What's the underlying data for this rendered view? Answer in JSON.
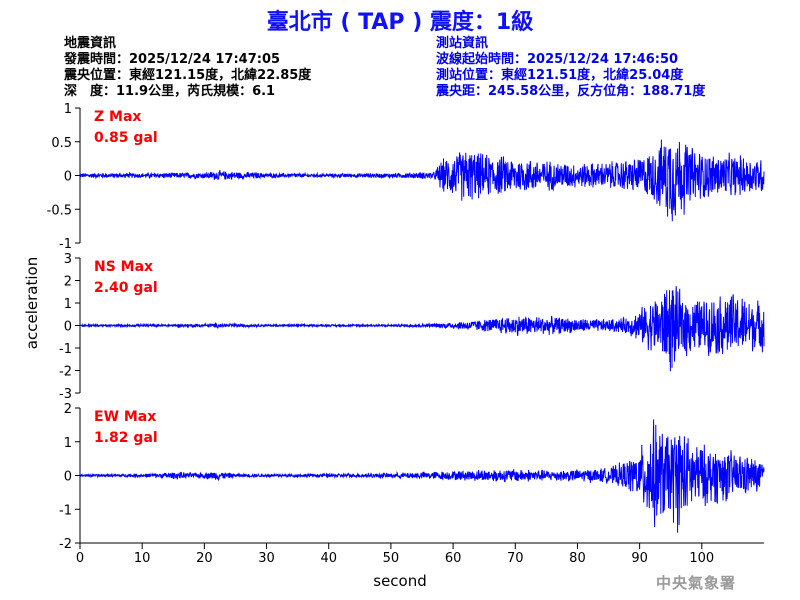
{
  "title": "臺北市 ( TAP ) 震度：1級",
  "quake_info": {
    "heading": "地震資訊",
    "origin_time": "發震時間：2025/12/24 17:47:05",
    "epicenter": "震央位置：東經121.15度，北緯22.85度",
    "depth_magnitude": "深　度：11.9公里，芮氏規模：6.1"
  },
  "station_info": {
    "heading": "測站資訊",
    "wave_start_time": "波線起始時間：2025/12/24 17:46:50",
    "location": "測站位置：東經121.51度，北緯25.04度",
    "distance_azimuth": "震央距：245.58公里，反方位角：188.71度"
  },
  "footer": "中央氣象署",
  "colors": {
    "trace": "#0000ff",
    "max_label": "#ff0000",
    "title": "#1010ff",
    "station_info": "#0000ee"
  },
  "chart_data": {
    "type": "line",
    "xlabel": "second",
    "ylabel": "acceleration",
    "xlim": [
      0,
      110
    ],
    "x_ticks": [
      "0",
      "10",
      "20",
      "30",
      "40",
      "50",
      "60",
      "70",
      "80",
      "90",
      "100"
    ],
    "grid": false,
    "panels": [
      {
        "name": "Z",
        "max_label": "Z Max",
        "max_value": "0.85 gal",
        "ylim": [
          -1,
          1
        ],
        "y_ticks": [
          "1",
          "0.5",
          "0",
          "-0.5",
          "-1"
        ],
        "series": [
          {
            "x": [
              0,
              10,
              20,
              22,
              30,
              40,
              50,
              57,
              58,
              60,
              62,
              65,
              70,
              75,
              80,
              85,
              90,
              92,
              93,
              94,
              95,
              96,
              97,
              98,
              100,
              102,
              105,
              108,
              110
            ],
            "amp": [
              0.04,
              0.04,
              0.05,
              0.08,
              0.04,
              0.03,
              0.04,
              0.06,
              0.25,
              0.35,
              0.45,
              0.35,
              0.3,
              0.25,
              0.2,
              0.22,
              0.3,
              0.4,
              0.55,
              0.6,
              0.85,
              0.7,
              0.65,
              0.5,
              0.4,
              0.35,
              0.35,
              0.3,
              0.3
            ]
          }
        ]
      },
      {
        "name": "NS",
        "max_label": "NS Max",
        "max_value": "2.40 gal",
        "ylim": [
          -3,
          3
        ],
        "y_ticks": [
          "3",
          "2",
          "1",
          "0",
          "-1",
          "-2",
          "-3"
        ],
        "series": [
          {
            "x": [
              0,
              10,
              20,
              22,
              30,
              40,
              50,
              57,
              60,
              65,
              70,
              75,
              80,
              85,
              88,
              90,
              92,
              94,
              95,
              96,
              98,
              100,
              103,
              105,
              108,
              110
            ],
            "amp": [
              0.05,
              0.06,
              0.08,
              0.12,
              0.05,
              0.05,
              0.06,
              0.1,
              0.18,
              0.3,
              0.5,
              0.45,
              0.35,
              0.3,
              0.4,
              0.8,
              1.3,
              1.8,
              2.4,
              1.8,
              1.4,
              1.3,
              1.5,
              1.6,
              1.3,
              1.2
            ]
          }
        ]
      },
      {
        "name": "EW",
        "max_label": "EW Max",
        "max_value": "1.82 gal",
        "ylim": [
          -2,
          2
        ],
        "y_ticks": [
          "2",
          "1",
          "0",
          "-1",
          "-2"
        ],
        "series": [
          {
            "x": [
              0,
              10,
              16,
              18,
              20,
              22,
              25,
              30,
              40,
              50,
              55,
              60,
              65,
              70,
              75,
              80,
              85,
              88,
              90,
              92,
              94,
              95,
              96,
              98,
              100,
              103,
              105,
              108,
              110
            ],
            "amp": [
              0.04,
              0.06,
              0.12,
              0.08,
              0.1,
              0.15,
              0.06,
              0.05,
              0.06,
              0.08,
              0.12,
              0.15,
              0.2,
              0.22,
              0.18,
              0.2,
              0.25,
              0.5,
              0.8,
              1.8,
              1.5,
              1.4,
              1.82,
              1.2,
              1.0,
              0.9,
              0.8,
              0.6,
              0.5
            ]
          }
        ]
      }
    ]
  }
}
